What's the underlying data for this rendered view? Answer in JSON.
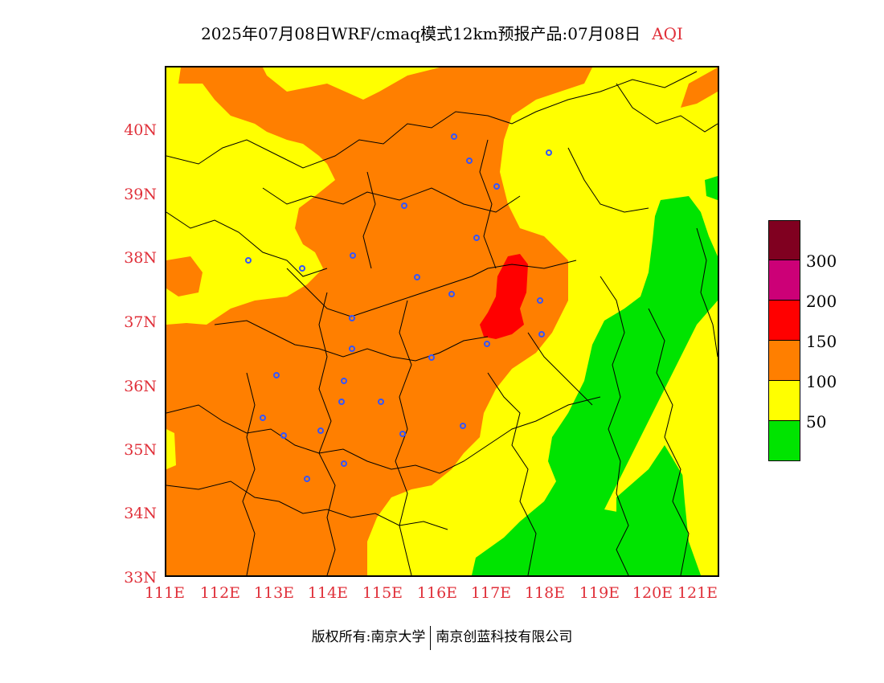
{
  "title": {
    "main": "2025年07月08日WRF/cmaq模式12km预报产品:07月08日",
    "variable": "AQI"
  },
  "axes": {
    "lat_labels": [
      "40N",
      "39N",
      "38N",
      "37N",
      "36N",
      "35N",
      "34N",
      "33N"
    ],
    "lon_labels": [
      "111E",
      "112E",
      "113E",
      "114E",
      "115E",
      "116E",
      "117E",
      "118E",
      "119E",
      "120E",
      "121E"
    ]
  },
  "legend": {
    "colors": [
      "#800020",
      "#cc0077",
      "#ff0000",
      "#ff7f00",
      "#ffff00",
      "#00e400"
    ],
    "labels": [
      "300",
      "200",
      "150",
      "100",
      "50"
    ]
  },
  "footer": {
    "left": "版权所有:南京大学",
    "right": "南京创蓝科技有限公司"
  },
  "colors": {
    "good": "#00e400",
    "moderate": "#ffff00",
    "usg": "#ff7f00",
    "unhealthy": "#ff0000",
    "label_red": "#e0303a"
  }
}
